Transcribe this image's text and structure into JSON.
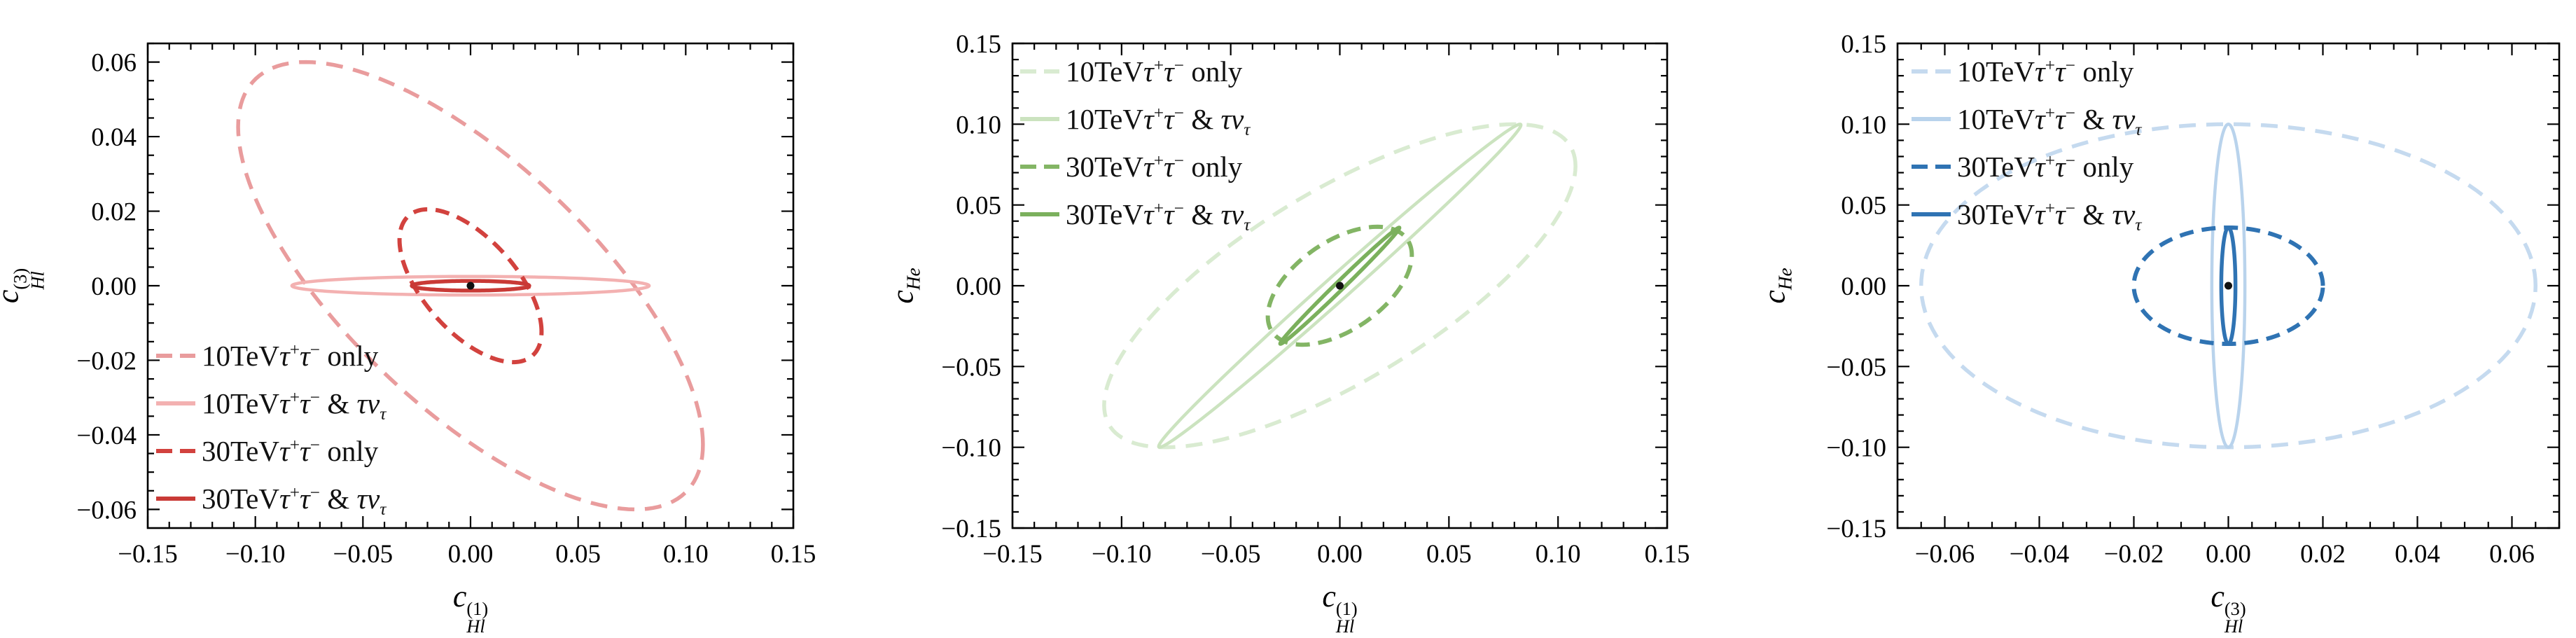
{
  "figure": {
    "background": "#ffffff",
    "frame_color": "#000000",
    "dot_color": "#111111"
  },
  "chart_data": [
    {
      "type": "contour-ellipses",
      "xlabel": {
        "base": "c",
        "sub": "Hl",
        "sup": "(1)"
      },
      "ylabel": {
        "base": "c",
        "sub": "Hl",
        "sup": "(3)"
      },
      "xlim": [
        -0.15,
        0.15
      ],
      "ylim": [
        -0.065,
        0.065
      ],
      "xticks": {
        "values": [
          -0.15,
          -0.1,
          -0.05,
          0.0,
          0.05,
          0.1,
          0.15
        ],
        "labels": [
          "−0.15",
          "−0.10",
          "−0.05",
          "0.00",
          "0.05",
          "0.10",
          "0.15"
        ],
        "minor_step": 0.01
      },
      "yticks": {
        "values": [
          -0.06,
          -0.04,
          -0.02,
          0.0,
          0.02,
          0.04,
          0.06
        ],
        "labels": [
          "−0.06",
          "−0.04",
          "−0.02",
          "0.00",
          "0.02",
          "0.04",
          "0.06"
        ],
        "minor_step": 0.005
      },
      "grid": false,
      "legend_position": "bottom-left",
      "center_point": {
        "x": 0.0,
        "y": 0.0
      },
      "series": [
        {
          "name": "10TeV tau+tau- only",
          "label_html": "10TeV<i>τ</i><sup>+</sup><i>τ</i><sup>−</sup> only",
          "style": "dashed",
          "color": "#E99C9D",
          "line_width": 5.5,
          "x_halfwidth": 0.108,
          "y_halfwidth": 0.06,
          "correlation": -0.71
        },
        {
          "name": "10TeV tau+tau- & taunu",
          "label_html": "10TeV<i>τ</i><sup>+</sup><i>τ</i><sup>−</sup> &amp; <i>τν</i><sub><i>τ</i></sub>",
          "style": "solid",
          "color": "#F3B1B1",
          "line_width": 4.5,
          "x_halfwidth": 0.083,
          "y_halfwidth": 0.0025,
          "correlation": 0.0
        },
        {
          "name": "30TeV tau+tau- only",
          "label_html": "30TeV<i>τ</i><sup>+</sup><i>τ</i><sup>−</sup> only",
          "style": "dashed",
          "color": "#D2423E",
          "line_width": 6.0,
          "x_halfwidth": 0.033,
          "y_halfwidth": 0.0205,
          "correlation": -0.6
        },
        {
          "name": "30TeV tau+tau- & taunu",
          "label_html": "30TeV<i>τ</i><sup>+</sup><i>τ</i><sup>−</sup> &amp; <i>τν</i><sub><i>τ</i></sub>",
          "style": "solid",
          "color": "#C93A36",
          "line_width": 5.5,
          "x_halfwidth": 0.0273,
          "y_halfwidth": 0.0013,
          "correlation": 0.0
        }
      ]
    },
    {
      "type": "contour-ellipses",
      "xlabel": {
        "base": "c",
        "sub": "Hl",
        "sup": "(1)"
      },
      "ylabel": {
        "base": "c",
        "sub": "He",
        "sup": ""
      },
      "xlim": [
        -0.15,
        0.15
      ],
      "ylim": [
        -0.15,
        0.15
      ],
      "xticks": {
        "values": [
          -0.15,
          -0.1,
          -0.05,
          0.0,
          0.05,
          0.1,
          0.15
        ],
        "labels": [
          "−0.15",
          "−0.10",
          "−0.05",
          "0.00",
          "0.05",
          "0.10",
          "0.15"
        ],
        "minor_step": 0.01
      },
      "yticks": {
        "values": [
          -0.15,
          -0.1,
          -0.05,
          0.0,
          0.05,
          0.1,
          0.15
        ],
        "labels": [
          "−0.15",
          "−0.10",
          "−0.05",
          "0.00",
          "0.05",
          "0.10",
          "0.15"
        ],
        "minor_step": 0.01
      },
      "grid": false,
      "legend_position": "top-left",
      "center_point": {
        "x": 0.0,
        "y": 0.0
      },
      "series": [
        {
          "name": "10TeV tau+tau- only",
          "label_html": "10TeV<i>τ</i><sup>+</sup><i>τ</i><sup>−</sup> only",
          "style": "dashed",
          "color": "#D9EBD1",
          "line_width": 5.5,
          "x_halfwidth": 0.108,
          "y_halfwidth": 0.1,
          "correlation": 0.74
        },
        {
          "name": "10TeV tau+tau- & taunu",
          "label_html": "10TeV<i>τ</i><sup>+</sup><i>τ</i><sup>−</sup> &amp; <i>τν</i><sub><i>τ</i></sub>",
          "style": "solid",
          "color": "#CBE3BF",
          "line_width": 4.5,
          "x_halfwidth": 0.083,
          "y_halfwidth": 0.1,
          "correlation": 0.995
        },
        {
          "name": "30TeV tau+tau- only",
          "label_html": "30TeV<i>τ</i><sup>+</sup><i>τ</i><sup>−</sup> only",
          "style": "dashed",
          "color": "#83B565",
          "line_width": 6.0,
          "x_halfwidth": 0.033,
          "y_halfwidth": 0.0365,
          "correlation": 0.52
        },
        {
          "name": "30TeV tau+tau- & taunu",
          "label_html": "30TeV<i>τ</i><sup>+</sup><i>τ</i><sup>−</sup> &amp; <i>τν</i><sub><i>τ</i></sub>",
          "style": "solid",
          "color": "#7BB05D",
          "line_width": 5.5,
          "x_halfwidth": 0.0273,
          "y_halfwidth": 0.036,
          "correlation": 0.995
        }
      ]
    },
    {
      "type": "contour-ellipses",
      "xlabel": {
        "base": "c",
        "sub": "Hl",
        "sup": "(3)"
      },
      "ylabel": {
        "base": "c",
        "sub": "He",
        "sup": ""
      },
      "xlim": [
        -0.07,
        0.07
      ],
      "ylim": [
        -0.15,
        0.15
      ],
      "xticks": {
        "values": [
          -0.06,
          -0.04,
          -0.02,
          0.0,
          0.02,
          0.04,
          0.06
        ],
        "labels": [
          "−0.06",
          "−0.04",
          "−0.02",
          "0.00",
          "0.02",
          "0.04",
          "0.06"
        ],
        "minor_step": 0.005
      },
      "yticks": {
        "values": [
          -0.15,
          -0.1,
          -0.05,
          0.0,
          0.05,
          0.1,
          0.15
        ],
        "labels": [
          "−0.15",
          "−0.10",
          "−0.05",
          "0.00",
          "0.05",
          "0.10",
          "0.15"
        ],
        "minor_step": 0.01
      },
      "grid": false,
      "legend_position": "top-left",
      "center_point": {
        "x": 0.0,
        "y": 0.0
      },
      "series": [
        {
          "name": "10TeV tau+tau- only",
          "label_html": "10TeV<i>τ</i><sup>+</sup><i>τ</i><sup>−</sup> only",
          "style": "dashed",
          "color": "#C5DAEF",
          "line_width": 5.5,
          "x_halfwidth": 0.065,
          "y_halfwidth": 0.1,
          "correlation": 0.0
        },
        {
          "name": "10TeV tau+tau- & taunu",
          "label_html": "10TeV<i>τ</i><sup>+</sup><i>τ</i><sup>−</sup> &amp; <i>τν</i><sub><i>τ</i></sub>",
          "style": "solid",
          "color": "#B9D3EC",
          "line_width": 4.5,
          "x_halfwidth": 0.0035,
          "y_halfwidth": 0.1,
          "correlation": 0.0
        },
        {
          "name": "30TeV tau+tau- only",
          "label_html": "30TeV<i>τ</i><sup>+</sup><i>τ</i><sup>−</sup> only",
          "style": "dashed",
          "color": "#2F73B3",
          "line_width": 6.0,
          "x_halfwidth": 0.02,
          "y_halfwidth": 0.036,
          "correlation": 0.0
        },
        {
          "name": "30TeV tau+tau- & taunu",
          "label_html": "30TeV<i>τ</i><sup>+</sup><i>τ</i><sup>−</sup> &amp; <i>τν</i><sub><i>τ</i></sub>",
          "style": "solid",
          "color": "#2F73B3",
          "line_width": 5.5,
          "x_halfwidth": 0.0015,
          "y_halfwidth": 0.036,
          "correlation": 0.0
        }
      ]
    }
  ]
}
